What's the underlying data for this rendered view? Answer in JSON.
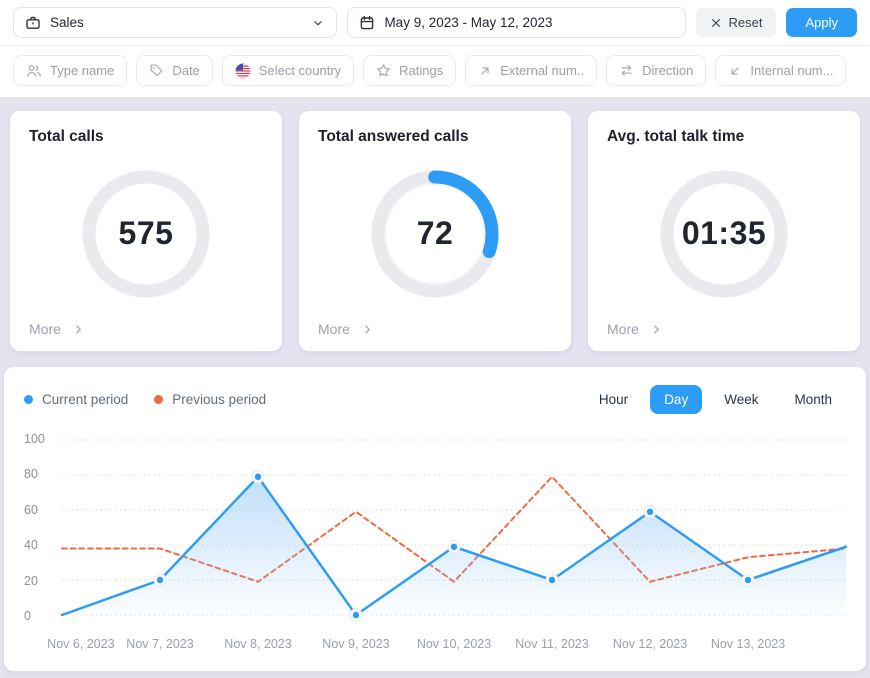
{
  "header": {
    "workspace_select": {
      "value": "Sales"
    },
    "date_range_input": {
      "value": "May 9, 2023 - May 12, 2023"
    },
    "reset_button": "Reset",
    "apply_button": "Apply"
  },
  "filter_bar": {
    "chips": [
      {
        "label": "Type name",
        "icon": "users-icon"
      },
      {
        "label": "Date",
        "icon": "tag-icon"
      },
      {
        "label": "Select country",
        "icon": "us-flag-icon"
      },
      {
        "label": "Ratings",
        "icon": "star-icon"
      },
      {
        "label": "External num..",
        "icon": "arrow-up-right-icon"
      },
      {
        "label": "Direction",
        "icon": "arrows-swap-icon"
      },
      {
        "label": "Internal num...",
        "icon": "arrow-down-left-icon"
      }
    ]
  },
  "stat_cards": [
    {
      "title": "Total calls",
      "value": "575",
      "more_label": "More",
      "progress_pct": 0
    },
    {
      "title": "Total answered calls",
      "value": "72",
      "more_label": "More",
      "progress_pct": 30
    },
    {
      "title": "Avg. total talk time",
      "value": "01:35",
      "more_label": "More",
      "progress_pct": 0
    }
  ],
  "chart": {
    "legend": [
      {
        "label": "Current period",
        "color": "#2d9cf4"
      },
      {
        "label": "Previous period",
        "color": "#f2683d"
      }
    ],
    "tabs": [
      {
        "label": "Hour"
      },
      {
        "label": "Day"
      },
      {
        "label": "Week"
      },
      {
        "label": "Month"
      }
    ],
    "active_tab": "Day"
  },
  "chart_data": {
    "type": "line",
    "x": [
      "Nov 6, 2023",
      "Nov 7, 2023",
      "Nov 8, 2023",
      "Nov 9, 2023",
      "Nov 10, 2023",
      "Nov 11, 2023",
      "Nov 12, 2023",
      "Nov 13, 2023"
    ],
    "series": [
      {
        "name": "Current period",
        "color": "#2d9cf4",
        "style": "solid",
        "area": true,
        "markers": true,
        "values": [
          0,
          20,
          79,
          0,
          39,
          20,
          59,
          20
        ],
        "edge_value": 39
      },
      {
        "name": "Previous period",
        "color": "#f2683d",
        "style": "dashed",
        "area": false,
        "markers": false,
        "values": [
          38,
          38,
          19,
          59,
          19,
          79,
          19,
          33
        ],
        "edge_value": 38
      }
    ],
    "ylim": [
      0,
      100
    ],
    "yticks": [
      0,
      20,
      40,
      60,
      80,
      100
    ],
    "grid": "dotted-horizontal",
    "legend_position": "top-left"
  },
  "colors": {
    "accent_blue": "#2d9cf4",
    "accent_orange": "#f2683d",
    "page_background": "#e4e3f0",
    "card_background": "#ffffff",
    "gauge_track": "#e9e9ee",
    "muted_text": "#9aa1ac",
    "dark_text": "#1b222e"
  }
}
